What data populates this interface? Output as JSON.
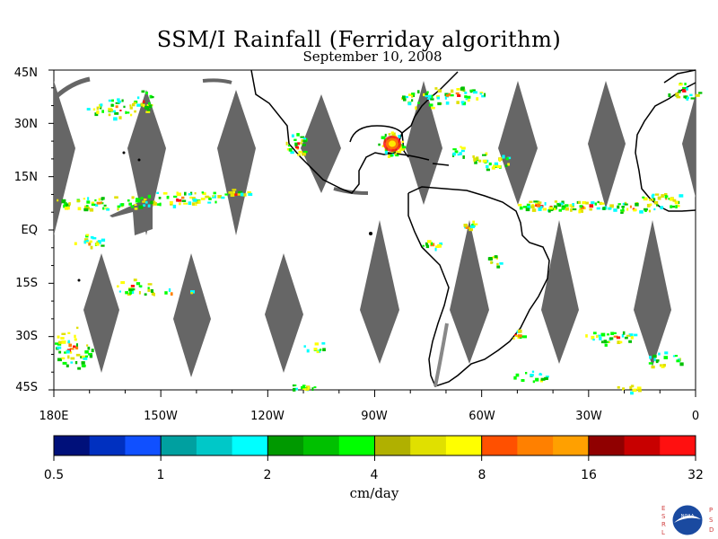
{
  "title": "SSM/I Rainfall (Ferriday algorithm)",
  "subtitle": "September 10, 2008",
  "lat_labels": [
    "45N",
    "30N",
    "15N",
    "EQ",
    "15S",
    "30S",
    "45S"
  ],
  "lon_labels": [
    "180E",
    "150W",
    "120W",
    "90W",
    "60W",
    "30W",
    "0"
  ],
  "colorbar": {
    "colors": [
      "#00107a",
      "#0030c0",
      "#1050ff",
      "#00a0a0",
      "#00c8c8",
      "#00ffff",
      "#009900",
      "#00c000",
      "#00ff00",
      "#b0b000",
      "#e0e000",
      "#ffff00",
      "#ff5000",
      "#ff8000",
      "#ffa000",
      "#900000",
      "#c80000",
      "#ff1010"
    ],
    "tick_labels": [
      "0.5",
      "1",
      "2",
      "4",
      "8",
      "16",
      "32"
    ],
    "units": "cm/day"
  },
  "logo": {
    "left_letters": "ESRL",
    "right_letters": "PSD",
    "emblem_text": "NOAA"
  },
  "map_data": {
    "lon_range": [
      -180,
      0
    ],
    "lat_range": [
      -45,
      45
    ],
    "swath_gap_color": "#666666",
    "coastline_color": "#000000"
  }
}
